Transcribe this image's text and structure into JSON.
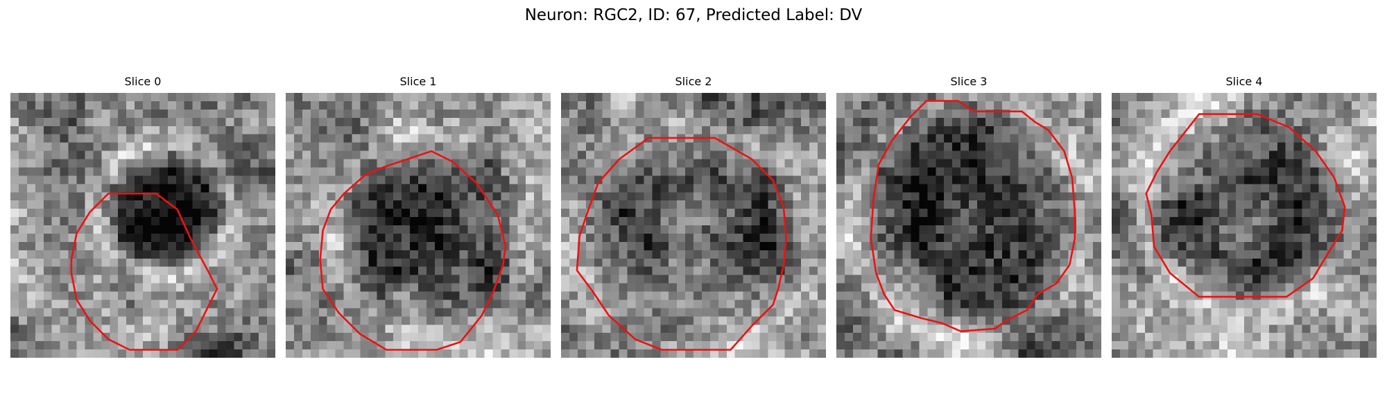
{
  "figure": {
    "title": "Neuron: RGC2, ID: 67, Predicted Label: DV"
  },
  "slices": [
    {
      "title": "Slice 0"
    },
    {
      "title": "Slice 1"
    },
    {
      "title": "Slice 2"
    },
    {
      "title": "Slice 3"
    },
    {
      "title": "Slice 4"
    }
  ],
  "colors": {
    "contour": "#ee1111",
    "colormap": "grayscale"
  }
}
